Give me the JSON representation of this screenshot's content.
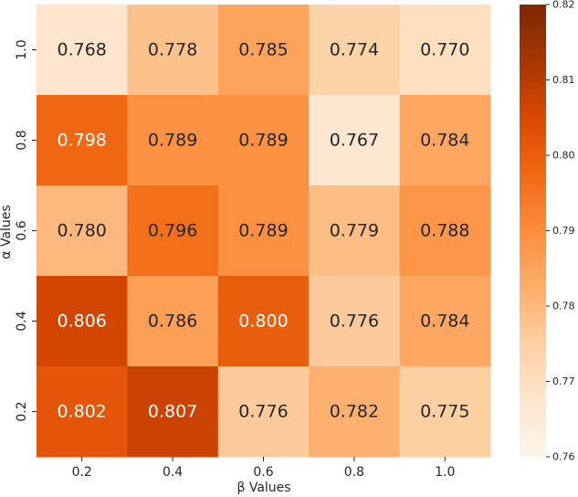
{
  "chart_data": {
    "type": "heatmap",
    "xlabel": "β Values",
    "ylabel": "α Values",
    "x_categories": [
      "0.2",
      "0.4",
      "0.6",
      "0.8",
      "1.0"
    ],
    "y_categories": [
      "1.0",
      "0.8",
      "0.6",
      "0.4",
      "0.2"
    ],
    "values": [
      [
        0.768,
        0.778,
        0.785,
        0.774,
        0.77
      ],
      [
        0.798,
        0.789,
        0.789,
        0.767,
        0.784
      ],
      [
        0.78,
        0.796,
        0.789,
        0.779,
        0.788
      ],
      [
        0.806,
        0.786,
        0.8,
        0.776,
        0.784
      ],
      [
        0.802,
        0.807,
        0.776,
        0.782,
        0.775
      ]
    ],
    "value_labels": [
      [
        "0.768",
        "0.778",
        "0.785",
        "0.774",
        "0.770"
      ],
      [
        "0.798",
        "0.789",
        "0.789",
        "0.767",
        "0.784"
      ],
      [
        "0.780",
        "0.796",
        "0.789",
        "0.779",
        "0.788"
      ],
      [
        "0.806",
        "0.786",
        "0.800",
        "0.776",
        "0.784"
      ],
      [
        "0.802",
        "0.807",
        "0.776",
        "0.782",
        "0.775"
      ]
    ],
    "colormap": "Oranges",
    "colormap_stops": [
      "#fff5eb",
      "#fee6ce",
      "#fdd0a2",
      "#fdae6b",
      "#fd8d3c",
      "#f16913",
      "#d94801",
      "#a63603",
      "#7f2704"
    ],
    "vmin": 0.76,
    "vmax": 0.82,
    "colorbar_ticks": [
      "0.76",
      "0.77",
      "0.78",
      "0.79",
      "0.80",
      "0.81",
      "0.82"
    ],
    "grid": false,
    "colorbar_position": "right"
  }
}
